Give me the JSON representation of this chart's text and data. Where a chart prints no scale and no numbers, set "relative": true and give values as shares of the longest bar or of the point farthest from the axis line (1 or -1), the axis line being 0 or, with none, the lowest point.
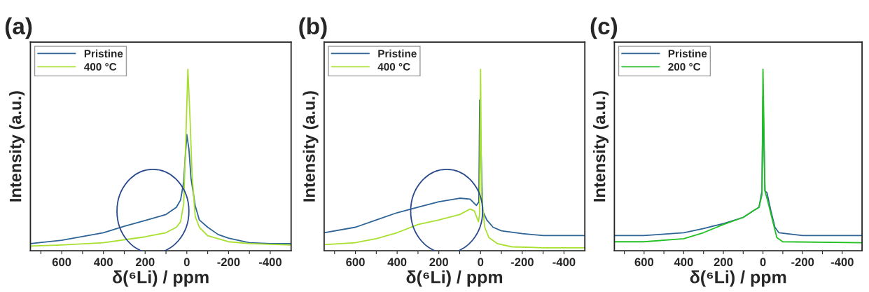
{
  "chart_data": [
    {
      "type": "line",
      "title": "(a)",
      "xlabel": "δ(⁶Li) / ppm",
      "ylabel": "Intensity (a.u.)",
      "relative": true,
      "legend": "top left",
      "grid": false,
      "xlim": [
        750,
        -500
      ],
      "xticks": [
        {
          "value": 700,
          "label": null
        },
        600,
        {
          "value": 500,
          "label": null
        },
        400,
        {
          "value": 300,
          "label": null
        },
        200,
        {
          "value": 100,
          "label": null
        },
        0,
        {
          "value": -100,
          "label": null
        },
        -200,
        {
          "value": -300,
          "label": null
        },
        -400
      ],
      "series": [
        {
          "name": "Pristine",
          "color": "#2e6496",
          "x": [
            750,
            600,
            400,
            300,
            200,
            100,
            50,
            30,
            15,
            5,
            0,
            -10,
            -20,
            -40,
            -60,
            -100,
            -150,
            -200,
            -300,
            -400,
            -500
          ],
          "values": [
            0.04,
            0.058,
            0.1,
            0.135,
            0.167,
            0.2,
            0.24,
            0.28,
            0.38,
            0.56,
            0.64,
            0.56,
            0.4,
            0.25,
            0.17,
            0.13,
            0.09,
            0.07,
            0.045,
            0.04,
            0.04
          ]
        },
        {
          "name": "400 °C",
          "color": "#a8e030",
          "x": [
            750,
            600,
            400,
            200,
            100,
            50,
            30,
            15,
            5,
            -5,
            -15,
            -25,
            -40,
            -60,
            -100,
            -200,
            -300,
            -500
          ],
          "values": [
            0.026,
            0.032,
            0.045,
            0.077,
            0.1,
            0.13,
            0.16,
            0.26,
            0.61,
            1.0,
            0.74,
            0.42,
            0.19,
            0.13,
            0.083,
            0.05,
            0.04,
            0.032
          ]
        }
      ]
    },
    {
      "type": "line",
      "title": "(b)",
      "xlabel": "δ(⁶Li) / ppm",
      "ylabel": "Intensity (a.u.)",
      "relative": true,
      "legend": "top left",
      "grid": false,
      "xlim": [
        750,
        -500
      ],
      "xticks": [
        {
          "value": 700,
          "label": null
        },
        600,
        {
          "value": 500,
          "label": null
        },
        400,
        {
          "value": 300,
          "label": null
        },
        200,
        {
          "value": 100,
          "label": null
        },
        0,
        {
          "value": -100,
          "label": null
        },
        -200,
        {
          "value": -300,
          "label": null
        },
        -400
      ],
      "series": [
        {
          "name": "Pristine",
          "color": "#2e6496",
          "x": [
            750,
            600,
            500,
            400,
            300,
            200,
            100,
            50,
            20,
            8,
            4,
            -10,
            -30,
            -60,
            -100,
            -200,
            -300,
            -500
          ],
          "values": [
            0.1,
            0.13,
            0.17,
            0.21,
            0.24,
            0.27,
            0.29,
            0.285,
            0.25,
            0.27,
            0.83,
            0.22,
            0.17,
            0.13,
            0.11,
            0.095,
            0.084,
            0.084
          ]
        },
        {
          "name": "400 °C",
          "color": "#a8e030",
          "x": [
            750,
            600,
            500,
            400,
            300,
            200,
            100,
            50,
            30,
            10,
            5,
            0,
            -5,
            -20,
            -40,
            -80,
            -150,
            -300,
            -500
          ],
          "values": [
            0.034,
            0.045,
            0.067,
            0.1,
            0.145,
            0.17,
            0.2,
            0.23,
            0.22,
            0.16,
            0.2,
            1.0,
            0.31,
            0.13,
            0.073,
            0.04,
            0.022,
            0.017,
            0.017
          ]
        }
      ]
    },
    {
      "type": "line",
      "title": "(c)",
      "xlabel": "δ(⁶Li) / ppm",
      "ylabel": "Intensity (a.u.)",
      "relative": true,
      "legend": "top left",
      "grid": false,
      "xlim": [
        750,
        -500
      ],
      "xticks": [
        {
          "value": 700,
          "label": null
        },
        600,
        {
          "value": 500,
          "label": null
        },
        400,
        {
          "value": 300,
          "label": null
        },
        200,
        {
          "value": 100,
          "label": null
        },
        0,
        {
          "value": -100,
          "label": null
        },
        -200,
        {
          "value": -300,
          "label": null
        },
        -400
      ],
      "series": [
        {
          "name": "Pristine",
          "color": "#2e6496",
          "x": [
            750,
            600,
            400,
            300,
            200,
            100,
            50,
            20,
            5,
            0,
            -10,
            -20,
            -40,
            -60,
            -80,
            -200,
            -500
          ],
          "values": [
            0.084,
            0.084,
            0.1,
            0.123,
            0.15,
            0.184,
            0.22,
            0.24,
            0.33,
            0.85,
            0.33,
            0.32,
            0.22,
            0.13,
            0.1,
            0.084,
            0.084
          ]
        },
        {
          "name": "200 °C",
          "color": "#22c022",
          "x": [
            750,
            600,
            400,
            300,
            200,
            100,
            50,
            20,
            5,
            0,
            -10,
            -25,
            -50,
            -70,
            -100,
            -500
          ],
          "values": [
            0.05,
            0.05,
            0.067,
            0.1,
            0.145,
            0.184,
            0.22,
            0.24,
            0.31,
            1.0,
            0.33,
            0.27,
            0.16,
            0.073,
            0.05,
            0.045
          ]
        }
      ]
    }
  ]
}
